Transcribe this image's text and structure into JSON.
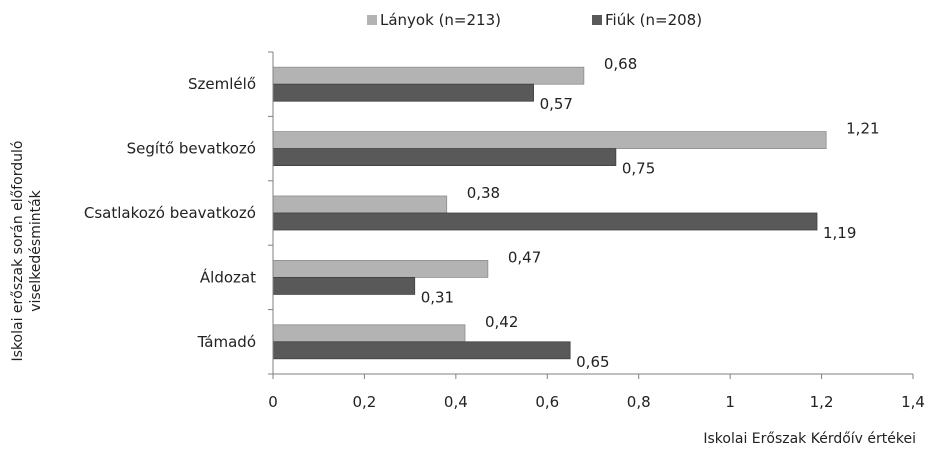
{
  "chart_data": {
    "type": "bar",
    "orientation": "horizontal",
    "categories": [
      "Szemlélő",
      "Segítő bevatkozó",
      "Csatlakozó beavatkozó",
      "Áldozat",
      "Támadó"
    ],
    "series": [
      {
        "name": "Lányok (n=213)",
        "values": [
          0.68,
          1.21,
          0.38,
          0.47,
          0.42
        ],
        "color": "#b3b3b3"
      },
      {
        "name": "Fiúk (n=208)",
        "values": [
          0.57,
          0.75,
          1.19,
          0.31,
          0.65
        ],
        "color": "#595959"
      }
    ],
    "value_labels": [
      [
        "0,68",
        "1,21",
        "0,38",
        "0,47",
        "0,42"
      ],
      [
        "0,57",
        "0,75",
        "1,19",
        "0,31",
        "0,65"
      ]
    ],
    "xlim": [
      0,
      1.4
    ],
    "xticks": [
      0,
      0.2,
      0.4,
      0.6,
      0.8,
      1,
      1.2,
      1.4
    ],
    "xtick_labels": [
      "0",
      "0,2",
      "0,4",
      "0,6",
      "0,8",
      "1",
      "1,2",
      "1,4"
    ],
    "xlabel": "Iskolai Erőszak Kérdőív értékei",
    "ylabel": [
      "Iskolai erőszak során előforduló",
      "viselkedésminták"
    ],
    "legend_position": "top-center",
    "grid": false
  }
}
